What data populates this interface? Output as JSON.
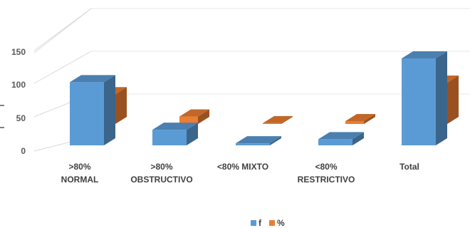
{
  "chart_data": {
    "type": "bar",
    "categories": [
      [
        ">80%",
        "NORMAL"
      ],
      [
        ">80%",
        "OBSTRUCTIVO"
      ],
      [
        "<80% MIXTO"
      ],
      [
        "<80%",
        "RESTRICTIVO"
      ],
      [
        "Total"
      ]
    ],
    "series": [
      {
        "name": "f",
        "values": [
          93,
          23,
          3,
          9,
          128
        ]
      },
      {
        "name": "%",
        "values": [
          72,
          18,
          2,
          7,
          100
        ]
      }
    ],
    "y_ticks": [
      "0",
      "50",
      "100",
      "150"
    ],
    "ylim": [
      0,
      150
    ],
    "legend_position": "bottom",
    "colors": {
      "f": "#5B9BD5",
      "%": "#ED7D31"
    }
  }
}
